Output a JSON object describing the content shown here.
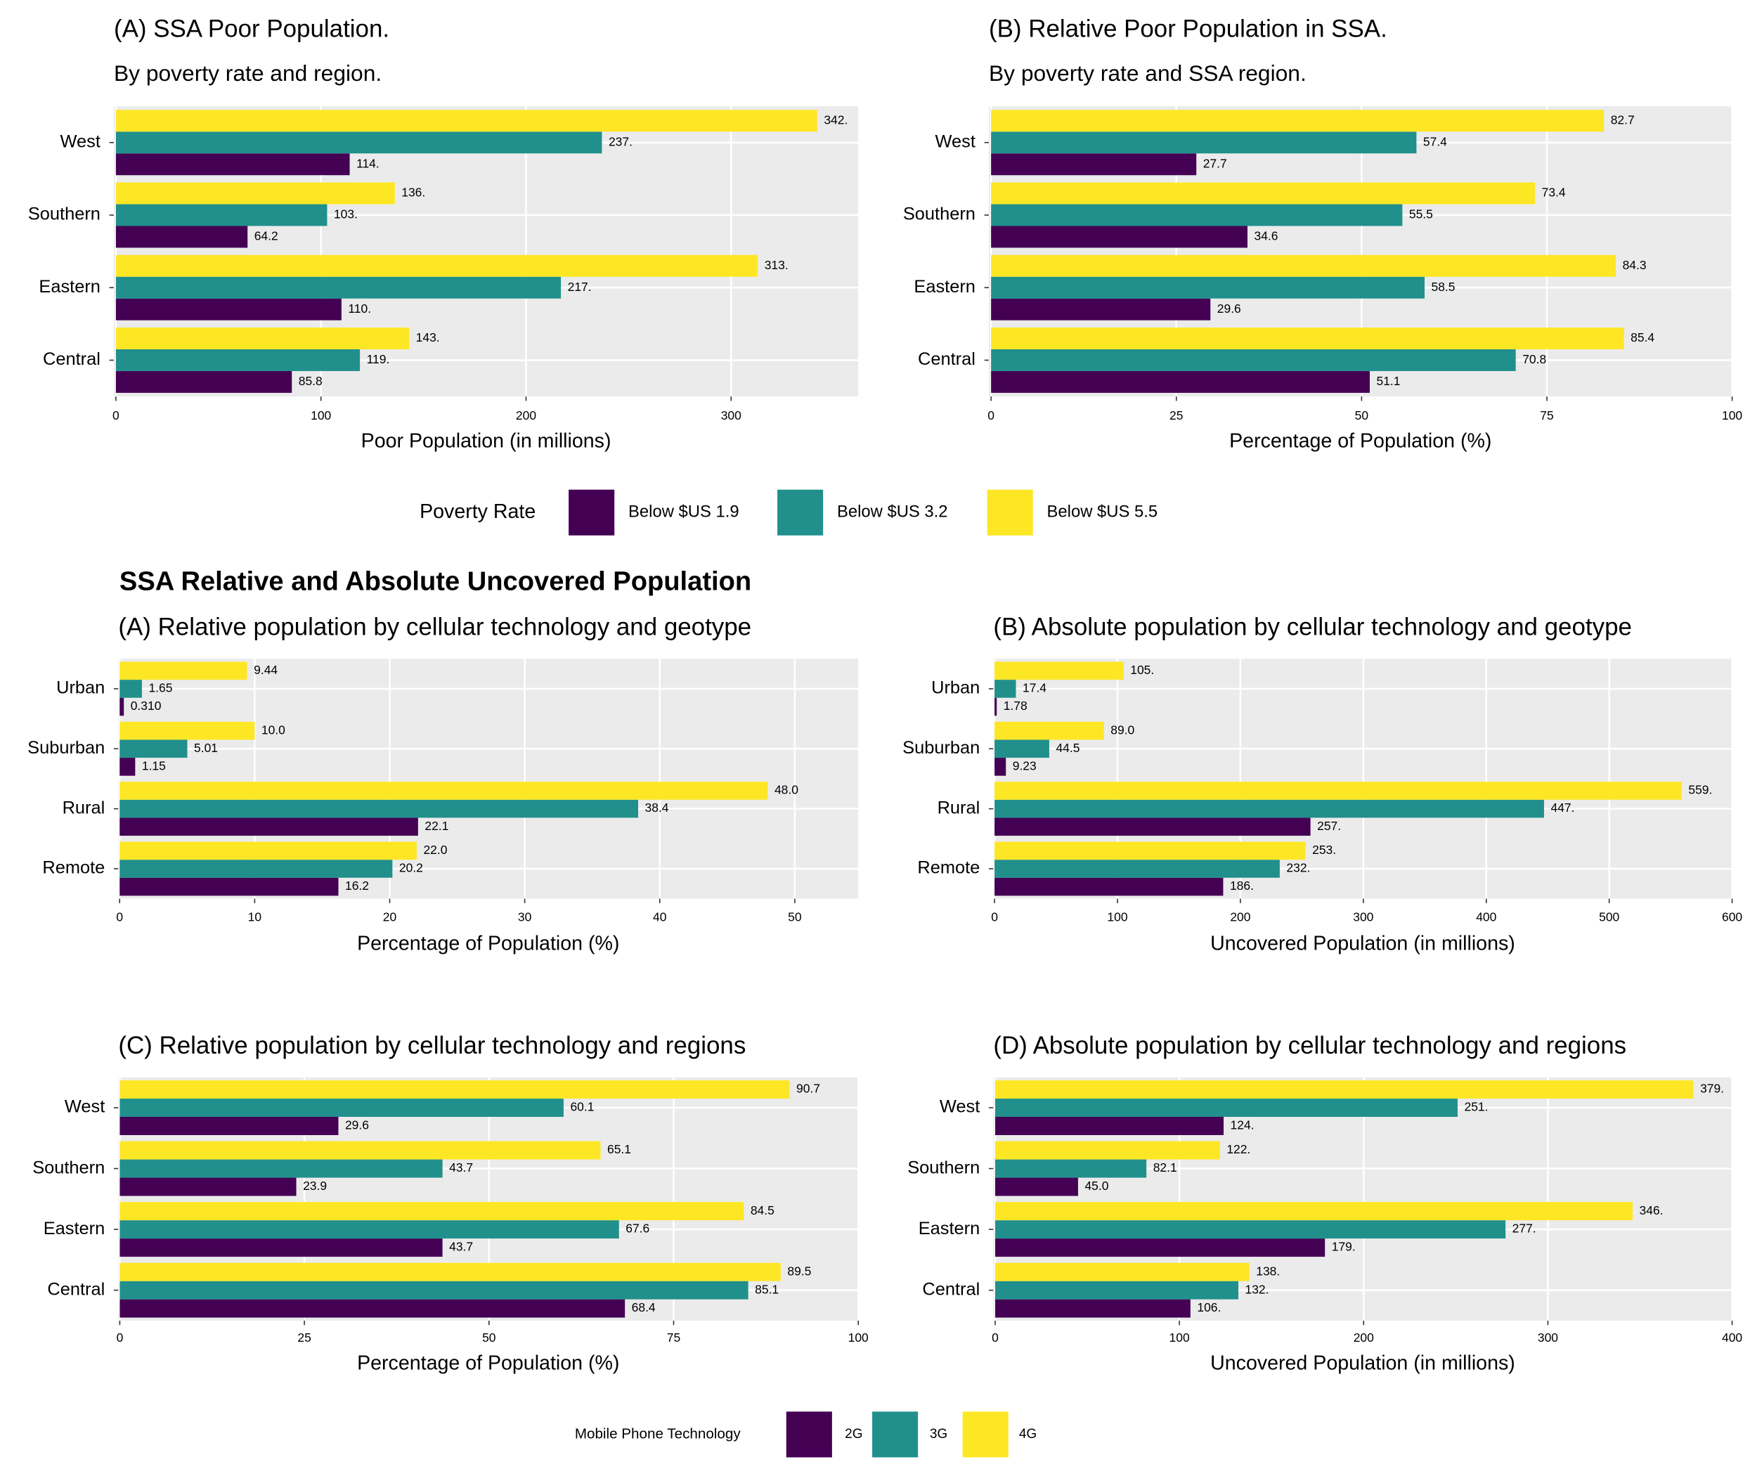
{
  "figure_title": "SSA Relative and Absolute Uncovered Population",
  "chart_data": [
    {
      "type": "bar",
      "orientation": "horizontal",
      "title": "(A) SSA Poor Population.",
      "subtitle": "By poverty rate and region.",
      "x_label": "Poor Population (in millions)",
      "legend_title": "Poverty Rate",
      "categories": [
        "West",
        "Southern",
        "Eastern",
        "Central"
      ],
      "series": [
        {
          "name": "Below $US 1.9",
          "color": "#440154",
          "values": [
            114,
            64.2,
            110,
            85.8
          ],
          "value_labels": [
            "114.",
            "64.2",
            "110.",
            "85.8"
          ]
        },
        {
          "name": "Below $US 3.2",
          "color": "#21908C",
          "values": [
            237,
            103,
            217,
            119
          ],
          "value_labels": [
            "237.",
            "103.",
            "217.",
            "119."
          ]
        },
        {
          "name": "Below $US 5.5",
          "color": "#FDE725",
          "values": [
            342,
            136,
            313,
            143
          ],
          "value_labels": [
            "342.",
            "136.",
            "313.",
            "143."
          ]
        }
      ],
      "xlim": [
        -1,
        362
      ],
      "xticks": [
        0,
        100,
        200,
        300
      ],
      "grid": true
    },
    {
      "type": "bar",
      "orientation": "horizontal",
      "title": "(B) Relative Poor Population in SSA.",
      "subtitle": "By poverty rate and SSA region.",
      "x_label": "Percentage of Population (%)",
      "categories": [
        "West",
        "Southern",
        "Eastern",
        "Central"
      ],
      "series": [
        {
          "name": "Below $US 1.9",
          "color": "#440154",
          "values": [
            27.7,
            34.6,
            29.6,
            51.1
          ],
          "value_labels": [
            "27.7",
            "34.6",
            "29.6",
            "51.1"
          ]
        },
        {
          "name": "Below $US 3.2",
          "color": "#21908C",
          "values": [
            57.4,
            55.5,
            58.5,
            70.8
          ],
          "value_labels": [
            "57.4",
            "55.5",
            "58.5",
            "70.8"
          ]
        },
        {
          "name": "Below $US 5.5",
          "color": "#FDE725",
          "values": [
            82.7,
            73.4,
            84.3,
            85.4
          ],
          "value_labels": [
            "82.7",
            "73.4",
            "84.3",
            "85.4"
          ]
        }
      ],
      "xlim": [
        -0.3,
        100
      ],
      "xticks": [
        0,
        25,
        50,
        75,
        100
      ],
      "grid": true
    },
    {
      "type": "bar",
      "orientation": "horizontal",
      "title": "(A) Relative population by cellular technology and geotype",
      "x_label": "Percentage of Population (%)",
      "legend_title": "Mobile Phone Technology",
      "categories": [
        "Urban",
        "Suburban",
        "Rural",
        "Remote"
      ],
      "series": [
        {
          "name": "2G",
          "color": "#440154",
          "values": [
            0.31,
            1.15,
            22.1,
            16.2
          ],
          "value_labels": [
            "0.310",
            "1.15",
            "22.1",
            "16.2"
          ]
        },
        {
          "name": "3G",
          "color": "#21908C",
          "values": [
            1.65,
            5.01,
            38.4,
            20.2
          ],
          "value_labels": [
            "1.65",
            "5.01",
            "38.4",
            "20.2"
          ]
        },
        {
          "name": "4G",
          "color": "#FDE725",
          "values": [
            9.44,
            10,
            48,
            22
          ],
          "value_labels": [
            "9.44",
            "10.0",
            "48.0",
            "22.0"
          ]
        }
      ],
      "xlim": [
        -0.1,
        54.7
      ],
      "xticks": [
        0,
        10,
        20,
        30,
        40,
        50
      ],
      "grid": true
    },
    {
      "type": "bar",
      "orientation": "horizontal",
      "title": "(B) Absolute population by cellular technology and geotype",
      "x_label": "Uncovered Population (in millions)",
      "categories": [
        "Urban",
        "Suburban",
        "Rural",
        "Remote"
      ],
      "series": [
        {
          "name": "2G",
          "color": "#440154",
          "values": [
            1.78,
            9.23,
            257,
            186
          ],
          "value_labels": [
            "1.78",
            "9.23",
            "257.",
            "186."
          ]
        },
        {
          "name": "3G",
          "color": "#21908C",
          "values": [
            17.4,
            44.5,
            447,
            232
          ],
          "value_labels": [
            "17.4",
            "44.5",
            "447.",
            "232."
          ]
        },
        {
          "name": "4G",
          "color": "#FDE725",
          "values": [
            105,
            89,
            559,
            253
          ],
          "value_labels": [
            "105.",
            "89.0",
            "559.",
            "253."
          ]
        }
      ],
      "xlim": [
        -1,
        600
      ],
      "xticks": [
        0,
        100,
        200,
        300,
        400,
        500,
        600
      ],
      "grid": true
    },
    {
      "type": "bar",
      "orientation": "horizontal",
      "title": "(C) Relative population by cellular technology and regions",
      "x_label": "Percentage of Population (%)",
      "categories": [
        "West",
        "Southern",
        "Eastern",
        "Central"
      ],
      "series": [
        {
          "name": "2G",
          "color": "#440154",
          "values": [
            29.6,
            23.9,
            43.7,
            68.4
          ],
          "value_labels": [
            "29.6",
            "23.9",
            "43.7",
            "68.4"
          ]
        },
        {
          "name": "3G",
          "color": "#21908C",
          "values": [
            60.1,
            43.7,
            67.6,
            85.1
          ],
          "value_labels": [
            "60.1",
            "43.7",
            "67.6",
            "85.1"
          ]
        },
        {
          "name": "4G",
          "color": "#FDE725",
          "values": [
            90.7,
            65.1,
            84.5,
            89.5
          ],
          "value_labels": [
            "90.7",
            "65.1",
            "84.5",
            "89.5"
          ]
        }
      ],
      "xlim": [
        -0.2,
        100
      ],
      "xticks": [
        0,
        25,
        50,
        75,
        100
      ],
      "grid": true
    },
    {
      "type": "bar",
      "orientation": "horizontal",
      "title": "(D) Absolute population by cellular technology and regions",
      "x_label": "Uncovered Population (in millions)",
      "categories": [
        "West",
        "Southern",
        "Eastern",
        "Central"
      ],
      "series": [
        {
          "name": "2G",
          "color": "#440154",
          "values": [
            124,
            45,
            179,
            106
          ],
          "value_labels": [
            "124.",
            "45.0",
            "179.",
            "106."
          ]
        },
        {
          "name": "3G",
          "color": "#21908C",
          "values": [
            251,
            82.1,
            277,
            132
          ],
          "value_labels": [
            "251.",
            "82.1",
            "277.",
            "132."
          ]
        },
        {
          "name": "4G",
          "color": "#FDE725",
          "values": [
            379,
            122,
            346,
            138
          ],
          "value_labels": [
            "379.",
            "122.",
            "346.",
            "138."
          ]
        }
      ],
      "xlim": [
        -1,
        400
      ],
      "xticks": [
        0,
        100,
        200,
        300,
        400
      ],
      "grid": true
    }
  ]
}
